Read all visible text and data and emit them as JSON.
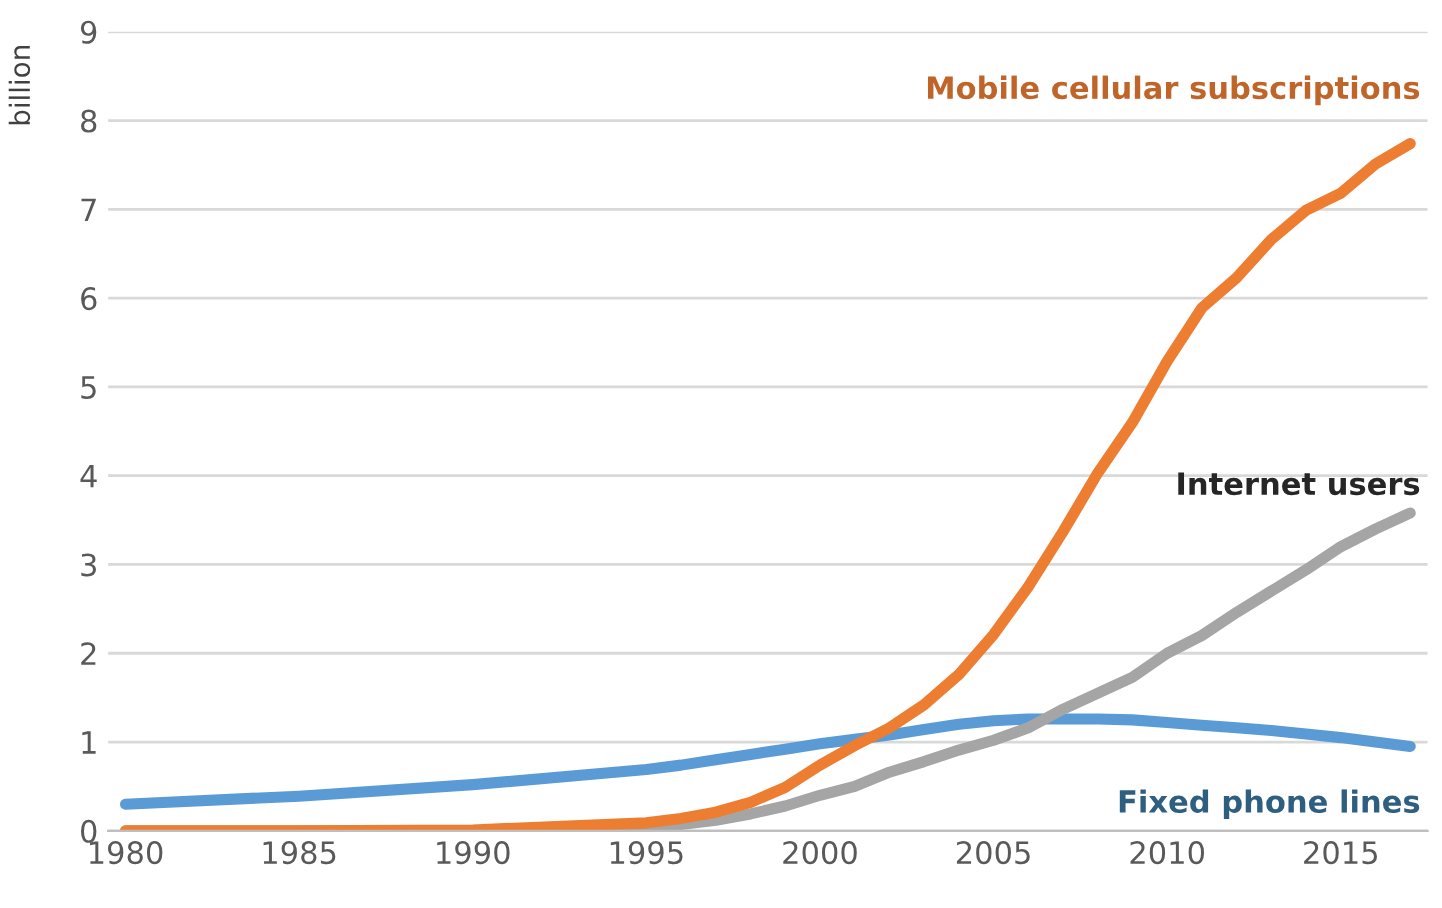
{
  "chart_data": {
    "type": "line",
    "ylabel": "billion",
    "x": [
      1980,
      1985,
      1990,
      1995,
      1996,
      1997,
      1998,
      1999,
      2000,
      2001,
      2002,
      2003,
      2004,
      2005,
      2006,
      2007,
      2008,
      2009,
      2010,
      2011,
      2012,
      2013,
      2014,
      2015,
      2016,
      2017
    ],
    "series": [
      {
        "name": "Fixed phone lines",
        "color": "#5b9bd5",
        "values": [
          0.3,
          0.39,
          0.52,
          0.69,
          0.74,
          0.8,
          0.86,
          0.92,
          0.98,
          1.03,
          1.08,
          1.14,
          1.2,
          1.24,
          1.26,
          1.26,
          1.26,
          1.25,
          1.22,
          1.19,
          1.16,
          1.13,
          1.09,
          1.05,
          1.0,
          0.95
        ]
      },
      {
        "name": "Internet users",
        "color": "#a5a5a5",
        "values": [
          0.0,
          0.0,
          0.0,
          0.04,
          0.07,
          0.12,
          0.19,
          0.28,
          0.4,
          0.5,
          0.66,
          0.78,
          0.91,
          1.02,
          1.16,
          1.37,
          1.55,
          1.73,
          2.0,
          2.2,
          2.46,
          2.7,
          2.94,
          3.2,
          3.4,
          3.58
        ]
      },
      {
        "name": "Mobile cellular subscriptions",
        "color": "#ed7d31",
        "values": [
          0.0,
          0.0,
          0.01,
          0.09,
          0.14,
          0.21,
          0.32,
          0.49,
          0.74,
          0.96,
          1.16,
          1.42,
          1.76,
          2.21,
          2.75,
          3.37,
          4.03,
          4.6,
          5.29,
          5.89,
          6.23,
          6.66,
          6.99,
          7.18,
          7.51,
          7.74
        ]
      }
    ],
    "xlim": [
      1979.5,
      2017.5
    ],
    "xticks": [
      1980,
      1985,
      1990,
      1995,
      2000,
      2005,
      2010,
      2015
    ],
    "ylim": [
      0,
      9
    ],
    "yticks": [
      0,
      1,
      2,
      3,
      4,
      5,
      6,
      7,
      8,
      9
    ],
    "grid": "y"
  }
}
